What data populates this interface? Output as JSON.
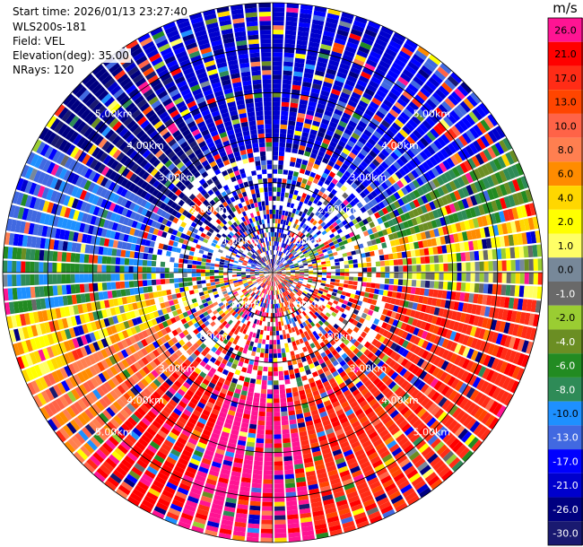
{
  "info": {
    "start_time": "Start time: 2026/01/13 23:27:40",
    "station": "WLS200s-181",
    "field": "Field: VEL",
    "elevation": "Elevation(deg): 35.00",
    "nrays": "NRays: 120"
  },
  "chart_data": {
    "type": "heatmap",
    "subtype": "polar-ppi",
    "title": "",
    "field": "VEL",
    "units": "m/s",
    "elevation_deg": 35.0,
    "n_rays": 120,
    "max_range_km": 6.0,
    "range_rings_km": [
      1,
      2,
      3,
      4,
      5,
      6
    ],
    "ring_labels_km": [
      "1.00km",
      "2.00km",
      "3.00km",
      "4.00km",
      "5.00km"
    ],
    "ring_label_positions": [
      "top-left",
      "top-right",
      "bottom-left",
      "bottom-right"
    ],
    "sectors": [
      {
        "from_deg": 330,
        "to_deg": 30,
        "dominant_ms": -21.0
      },
      {
        "from_deg": 30,
        "to_deg": 60,
        "dominant_ms": -17.0
      },
      {
        "from_deg": 60,
        "to_deg": 75,
        "dominant_ms": -6.0
      },
      {
        "from_deg": 75,
        "to_deg": 85,
        "dominant_ms": 4.0
      },
      {
        "from_deg": 85,
        "to_deg": 95,
        "dominant_ms": 0.0
      },
      {
        "from_deg": 95,
        "to_deg": 170,
        "dominant_ms": 17.0
      },
      {
        "from_deg": 170,
        "to_deg": 200,
        "dominant_ms": 26.0
      },
      {
        "from_deg": 200,
        "to_deg": 225,
        "dominant_ms": 21.0
      },
      {
        "from_deg": 225,
        "to_deg": 245,
        "dominant_ms": 8.0
      },
      {
        "from_deg": 245,
        "to_deg": 260,
        "dominant_ms": 4.0
      },
      {
        "from_deg": 260,
        "to_deg": 275,
        "dominant_ms": -8.0
      },
      {
        "from_deg": 275,
        "to_deg": 300,
        "dominant_ms": -13.0
      },
      {
        "from_deg": 300,
        "to_deg": 330,
        "dominant_ms": -26.0
      }
    ],
    "colorbar": {
      "label": "m/s",
      "levels": [
        {
          "value": "26.0",
          "color": "#ff1493"
        },
        {
          "value": "21.0",
          "color": "#ff0000"
        },
        {
          "value": "17.0",
          "color": "#ff2c16"
        },
        {
          "value": "13.0",
          "color": "#ff4500"
        },
        {
          "value": "10.0",
          "color": "#ff6347"
        },
        {
          "value": "8.0",
          "color": "#ff7f50"
        },
        {
          "value": "6.0",
          "color": "#ff8c00"
        },
        {
          "value": "4.0",
          "color": "#ffd700"
        },
        {
          "value": "2.0",
          "color": "#ffff00"
        },
        {
          "value": "1.0",
          "color": "#ffff66"
        },
        {
          "value": "0.0",
          "color": "#778899"
        },
        {
          "value": "-1.0",
          "color": "#696969"
        },
        {
          "value": "-2.0",
          "color": "#9acd32"
        },
        {
          "value": "-4.0",
          "color": "#6b8e23"
        },
        {
          "value": "-6.0",
          "color": "#228b22"
        },
        {
          "value": "-8.0",
          "color": "#2e8b57"
        },
        {
          "value": "-10.0",
          "color": "#1e90ff"
        },
        {
          "value": "-13.0",
          "color": "#4169e1"
        },
        {
          "value": "-17.0",
          "color": "#0000ff"
        },
        {
          "value": "-21.0",
          "color": "#0000cd"
        },
        {
          "value": "-26.0",
          "color": "#000080"
        },
        {
          "value": "-30.0",
          "color": "#191970"
        }
      ]
    }
  }
}
